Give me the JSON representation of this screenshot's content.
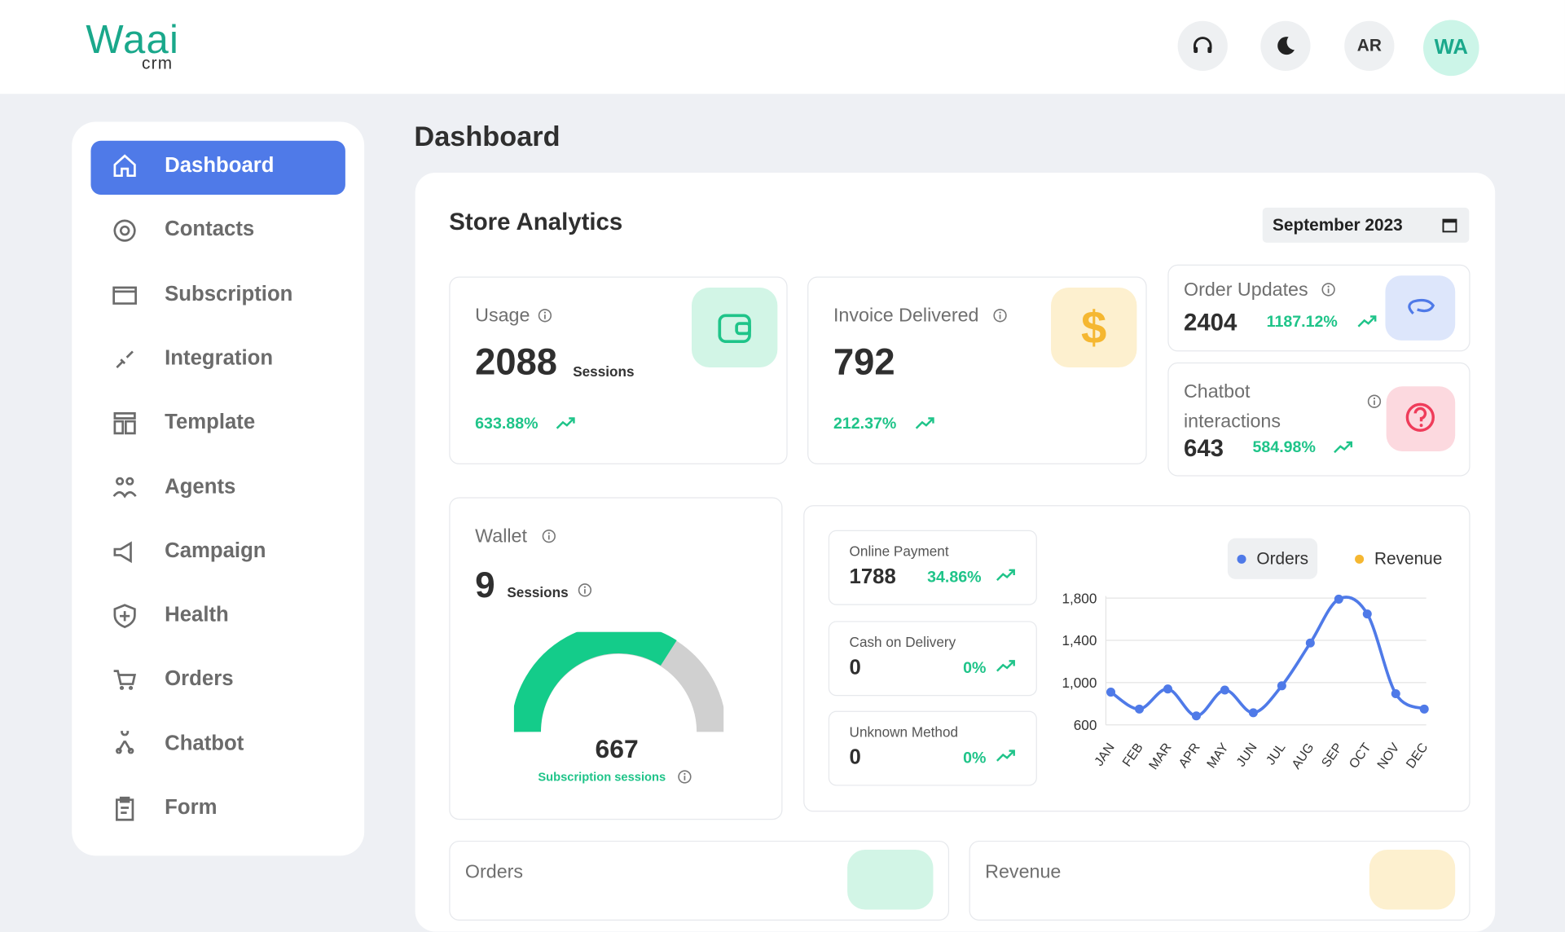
{
  "header": {
    "logo": "Waai",
    "logo_sub": "crm",
    "lang": "AR",
    "avatar": "WA"
  },
  "sidebar": {
    "items": [
      "Dashboard",
      "Contacts",
      "Subscription",
      "Integration",
      "Template",
      "Agents",
      "Campaign",
      "Health",
      "Orders",
      "Chatbot",
      "Form"
    ]
  },
  "page_title": "Dashboard",
  "store": {
    "title": "Store Analytics",
    "date": "September 2023"
  },
  "cards": {
    "usage": {
      "label": "Usage",
      "value": 2088,
      "unit": "Sessions",
      "change": "633.88%"
    },
    "invoice": {
      "label": "Invoice Delivered",
      "value": 792,
      "change": "212.37%"
    },
    "order_updates": {
      "label": "Order Updates",
      "value": 2404,
      "change": "1187.12%"
    },
    "chatbot": {
      "label": "Chatbot interactions",
      "value": 643,
      "change": "584.98%"
    }
  },
  "wallet": {
    "label": "Wallet",
    "value": 9,
    "unit": "Sessions",
    "gauge_value": 667,
    "gauge_label": "Subscription sessions"
  },
  "payments": [
    {
      "label": "Online Payment",
      "value": 1788,
      "change": "34.86%"
    },
    {
      "label": "Cash on Delivery",
      "value": 0,
      "change": "0%"
    },
    {
      "label": "Unknown Method",
      "value": 0,
      "change": "0%"
    }
  ],
  "chart": {
    "type": "line",
    "categories": [
      "JAN",
      "FEB",
      "MAR",
      "APR",
      "MAY",
      "JUN",
      "JUL",
      "AUG",
      "SEP",
      "OCT",
      "NOV",
      "DEC"
    ],
    "series": [
      {
        "name": "Orders",
        "color": "#4f7ae8",
        "values": [
          910,
          750,
          940,
          685,
          930,
          715,
          970,
          1375,
          1790,
          1650,
          895,
          750
        ]
      },
      {
        "name": "Revenue",
        "color": "#f5b731",
        "values": [
          null,
          null,
          null,
          null,
          null,
          null,
          null,
          null,
          null,
          null,
          null,
          null
        ]
      }
    ],
    "ylim": [
      600,
      1800
    ],
    "yticks": [
      600,
      {
        "value": 1000,
        "label": "1,000"
      },
      {
        "value": 1400,
        "label": "1,400"
      },
      {
        "value": 1800,
        "label": "1,800"
      }
    ],
    "grid": true
  },
  "bottom": {
    "orders": "Orders",
    "revenue": "Revenue"
  }
}
